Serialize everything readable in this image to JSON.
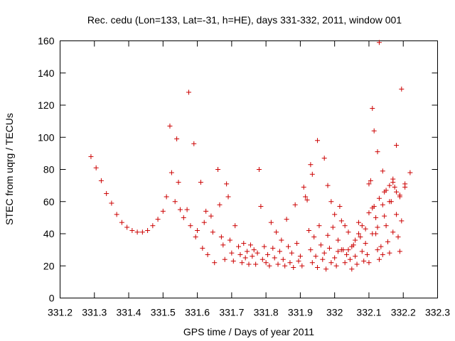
{
  "chart_data": {
    "type": "scatter",
    "title": "Rec. cedu (Lon=133, Lat=-31, h=HE), days 331-332, 2011, window 001",
    "xlabel": "GPS time / Days of year 2011",
    "ylabel": "STEC from uqrg / TECUs",
    "xlim": [
      331.2,
      332.3
    ],
    "ylim": [
      0,
      160
    ],
    "x_ticks": [
      "331.2",
      "331.3",
      "331.4",
      "331.5",
      "331.6",
      "331.7",
      "331.8",
      "331.9",
      "332",
      "332.1",
      "332.2",
      "332.3"
    ],
    "y_ticks": [
      "0",
      "20",
      "40",
      "60",
      "80",
      "100",
      "120",
      "140",
      "160"
    ],
    "marker": "plus",
    "color": "#cc0000",
    "grid": false,
    "points": [
      [
        331.29,
        88
      ],
      [
        331.305,
        81
      ],
      [
        331.32,
        73
      ],
      [
        331.335,
        65
      ],
      [
        331.35,
        59
      ],
      [
        331.365,
        52
      ],
      [
        331.38,
        47
      ],
      [
        331.395,
        44
      ],
      [
        331.41,
        42
      ],
      [
        331.425,
        41
      ],
      [
        331.44,
        41
      ],
      [
        331.455,
        42
      ],
      [
        331.47,
        45
      ],
      [
        331.485,
        49
      ],
      [
        331.5,
        54
      ],
      [
        331.51,
        63
      ],
      [
        331.52,
        107
      ],
      [
        331.525,
        78
      ],
      [
        331.535,
        60
      ],
      [
        331.54,
        99
      ],
      [
        331.545,
        72
      ],
      [
        331.55,
        55
      ],
      [
        331.56,
        50
      ],
      [
        331.57,
        55
      ],
      [
        331.575,
        128
      ],
      [
        331.58,
        45
      ],
      [
        331.59,
        96
      ],
      [
        331.595,
        38
      ],
      [
        331.6,
        42
      ],
      [
        331.61,
        72
      ],
      [
        331.615,
        31
      ],
      [
        331.62,
        47
      ],
      [
        331.625,
        54
      ],
      [
        331.63,
        27
      ],
      [
        331.64,
        51
      ],
      [
        331.645,
        41
      ],
      [
        331.65,
        22
      ],
      [
        331.66,
        80
      ],
      [
        331.665,
        58
      ],
      [
        331.67,
        38
      ],
      [
        331.675,
        33
      ],
      [
        331.68,
        24
      ],
      [
        331.685,
        71
      ],
      [
        331.69,
        63
      ],
      [
        331.695,
        36
      ],
      [
        331.7,
        28
      ],
      [
        331.705,
        23
      ],
      [
        331.71,
        45
      ],
      [
        331.72,
        32
      ],
      [
        331.725,
        27
      ],
      [
        331.73,
        22
      ],
      [
        331.735,
        34
      ],
      [
        331.74,
        25
      ],
      [
        331.745,
        29
      ],
      [
        331.75,
        21
      ],
      [
        331.755,
        33
      ],
      [
        331.76,
        26
      ],
      [
        331.765,
        30
      ],
      [
        331.77,
        21
      ],
      [
        331.775,
        28
      ],
      [
        331.78,
        80
      ],
      [
        331.785,
        57
      ],
      [
        331.79,
        24
      ],
      [
        331.795,
        32
      ],
      [
        331.8,
        22
      ],
      [
        331.805,
        27
      ],
      [
        331.81,
        20
      ],
      [
        331.815,
        47
      ],
      [
        331.82,
        31
      ],
      [
        331.825,
        25
      ],
      [
        331.83,
        41
      ],
      [
        331.835,
        21
      ],
      [
        331.84,
        29
      ],
      [
        331.845,
        36
      ],
      [
        331.85,
        24
      ],
      [
        331.855,
        20
      ],
      [
        331.86,
        49
      ],
      [
        331.865,
        32
      ],
      [
        331.87,
        22
      ],
      [
        331.875,
        28
      ],
      [
        331.88,
        19
      ],
      [
        331.885,
        58
      ],
      [
        331.89,
        34
      ],
      [
        331.895,
        23
      ],
      [
        331.9,
        26
      ],
      [
        331.905,
        20
      ],
      [
        331.91,
        69
      ],
      [
        331.915,
        63
      ],
      [
        331.92,
        61
      ],
      [
        331.925,
        42
      ],
      [
        331.93,
        30
      ],
      [
        331.935,
        22
      ],
      [
        331.94,
        38
      ],
      [
        331.945,
        26
      ],
      [
        331.95,
        19
      ],
      [
        331.955,
        45
      ],
      [
        331.96,
        33
      ],
      [
        331.965,
        24
      ],
      [
        331.97,
        28
      ],
      [
        331.975,
        18
      ],
      [
        331.98,
        39
      ],
      [
        331.985,
        31
      ],
      [
        331.99,
        22
      ],
      [
        331.995,
        44
      ],
      [
        332.0,
        25
      ],
      [
        332.005,
        20
      ],
      [
        332.01,
        36
      ],
      [
        332.015,
        57
      ],
      [
        332.02,
        48
      ],
      [
        332.025,
        30
      ],
      [
        332.03,
        22
      ],
      [
        332.035,
        27
      ],
      [
        332.04,
        41
      ],
      [
        332.045,
        24
      ],
      [
        332.05,
        18
      ],
      [
        332.055,
        33
      ],
      [
        332.06,
        26
      ],
      [
        332.065,
        21
      ],
      [
        332.07,
        47
      ],
      [
        332.075,
        38
      ],
      [
        332.08,
        29
      ],
      [
        332.085,
        23
      ],
      [
        332.09,
        34
      ],
      [
        332.095,
        27
      ],
      [
        332.1,
        22
      ],
      [
        332.105,
        73
      ],
      [
        332.11,
        56
      ],
      [
        332.115,
        57
      ],
      [
        332.12,
        40
      ],
      [
        332.125,
        30
      ],
      [
        332.13,
        24
      ],
      [
        332.135,
        32
      ],
      [
        332.14,
        27
      ],
      [
        332.145,
        66
      ],
      [
        332.15,
        45
      ],
      [
        332.155,
        35
      ],
      [
        332.16,
        28
      ],
      [
        332.165,
        60
      ],
      [
        332.17,
        41
      ],
      [
        332.175,
        69
      ],
      [
        332.18,
        52
      ],
      [
        332.185,
        38
      ],
      [
        332.19,
        29
      ],
      [
        332.195,
        48
      ],
      [
        331.93,
        83
      ],
      [
        331.935,
        77
      ],
      [
        331.95,
        98
      ],
      [
        331.97,
        87
      ],
      [
        331.98,
        70
      ],
      [
        331.99,
        60
      ],
      [
        332.0,
        52
      ],
      [
        332.01,
        29
      ],
      [
        332.02,
        30
      ],
      [
        332.03,
        45
      ],
      [
        332.04,
        30
      ],
      [
        332.05,
        32
      ],
      [
        332.06,
        36
      ],
      [
        332.07,
        40
      ],
      [
        332.08,
        45
      ],
      [
        332.09,
        43
      ],
      [
        332.1,
        53
      ],
      [
        332.11,
        40
      ],
      [
        332.12,
        50
      ],
      [
        332.13,
        62
      ],
      [
        332.14,
        58
      ],
      [
        332.15,
        67
      ],
      [
        332.16,
        70
      ],
      [
        332.17,
        72
      ],
      [
        332.18,
        66
      ],
      [
        332.19,
        63
      ],
      [
        332.1,
        71
      ],
      [
        332.11,
        118
      ],
      [
        332.115,
        104
      ],
      [
        332.125,
        91
      ],
      [
        332.13,
        159
      ],
      [
        332.14,
        79
      ],
      [
        332.145,
        51
      ],
      [
        332.16,
        60
      ],
      [
        332.17,
        74
      ],
      [
        332.18,
        95
      ],
      [
        332.19,
        64
      ],
      [
        332.195,
        130
      ],
      [
        332.205,
        69
      ],
      [
        332.22,
        78
      ],
      [
        332.205,
        71
      ],
      [
        332.125,
        44
      ]
    ]
  }
}
